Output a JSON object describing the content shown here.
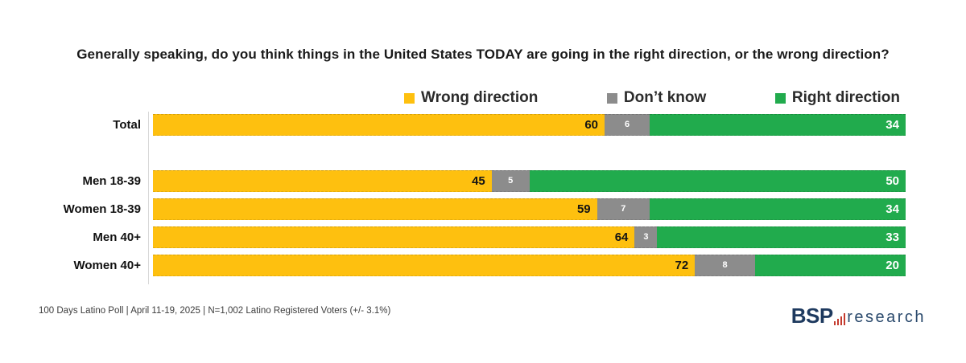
{
  "title": "Generally speaking, do you think things in the United States TODAY are going in the right direction, or the wrong direction?",
  "legend": [
    {
      "label": "Wrong direction",
      "color": "#fec00f"
    },
    {
      "label": "Don’t know",
      "color": "#8c8c8c"
    },
    {
      "label": "Right direction",
      "color": "#21ab4d"
    }
  ],
  "chart_data": {
    "type": "bar",
    "orientation": "horizontal",
    "stacked": true,
    "xlim": [
      0,
      100
    ],
    "legend_position": "top",
    "categories": [
      "Total",
      "Men 18-39",
      "Women 18-39",
      "Men 40+",
      "Women 40+"
    ],
    "series": [
      {
        "name": "Wrong direction",
        "color": "#fec00f",
        "values": [
          60,
          45,
          59,
          64,
          72
        ]
      },
      {
        "name": "Don't know",
        "color": "#8c8c8c",
        "values": [
          6,
          5,
          7,
          3,
          8
        ]
      },
      {
        "name": "Right direction",
        "color": "#21ab4d",
        "values": [
          34,
          50,
          34,
          33,
          20
        ]
      }
    ]
  },
  "footer": {
    "source": "100 Days Latino Poll | April 11-19, 2025 | N=1,002 Latino Registered Voters (+/- 3.1%)"
  },
  "logo": {
    "bold_text": "BSP",
    "light_text": "research",
    "navy": "#1e3a5f",
    "red": "#c43b2e"
  }
}
